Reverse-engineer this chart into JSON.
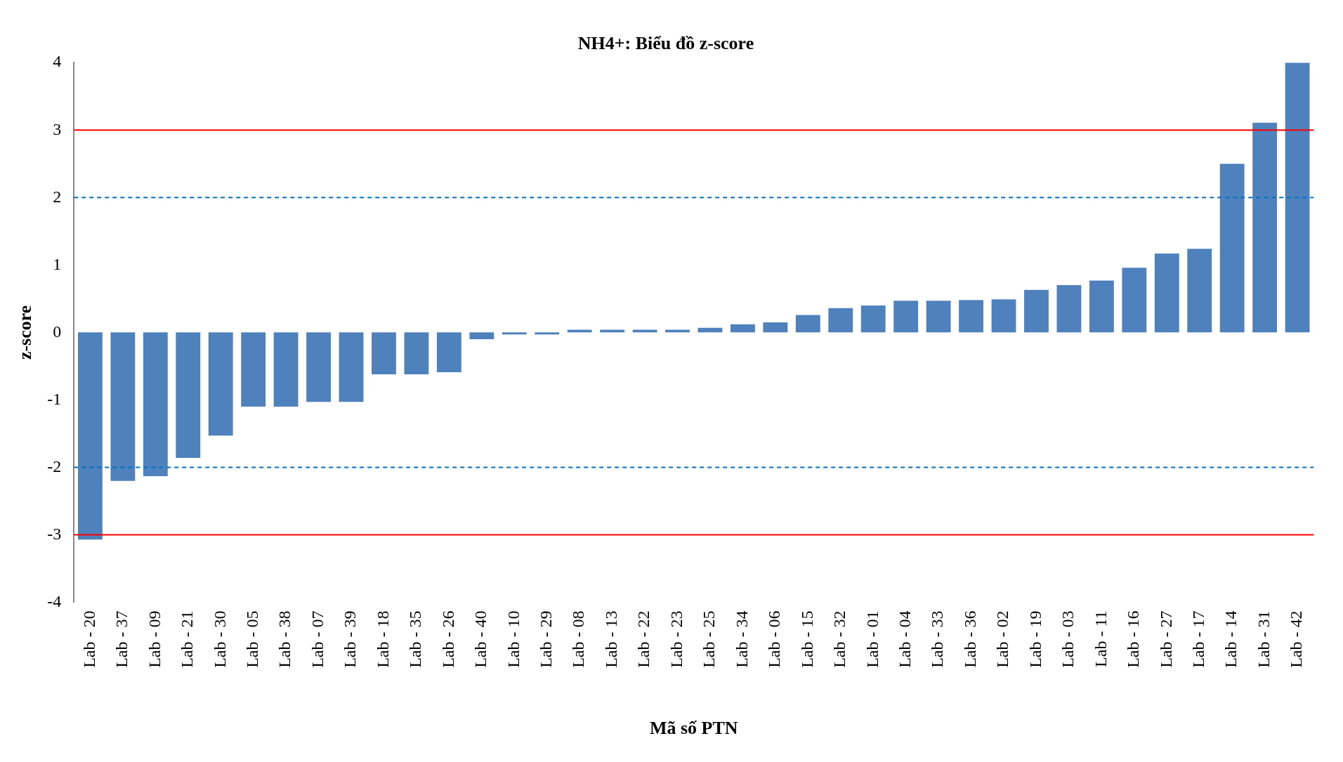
{
  "chart_data": {
    "type": "bar",
    "title": "NH4+: Biểu đồ z-score",
    "xlabel": "Mã số PTN",
    "ylabel": "z-score",
    "categories": [
      "Lab - 20",
      "Lab - 37",
      "Lab - 09",
      "Lab - 21",
      "Lab - 30",
      "Lab - 05",
      "Lab - 38",
      "Lab - 07",
      "Lab - 39",
      "Lab - 18",
      "Lab - 35",
      "Lab - 26",
      "Lab - 40",
      "Lab - 10",
      "Lab - 29",
      "Lab - 08",
      "Lab - 13",
      "Lab - 22",
      "Lab - 23",
      "Lab - 25",
      "Lab - 34",
      "Lab - 06",
      "Lab - 15",
      "Lab - 32",
      "Lab - 01",
      "Lab - 04",
      "Lab - 33",
      "Lab - 36",
      "Lab - 02",
      "Lab - 19",
      "Lab - 03",
      "Lab - 11",
      "Lab - 16",
      "Lab - 27",
      "Lab - 17",
      "Lab - 14",
      "Lab - 31",
      "Lab - 42"
    ],
    "values": [
      -3.07,
      -2.2,
      -2.13,
      -1.86,
      -1.53,
      -1.1,
      -1.1,
      -1.03,
      -1.03,
      -0.62,
      -0.62,
      -0.59,
      -0.1,
      -0.03,
      -0.03,
      0.04,
      0.04,
      0.04,
      0.04,
      0.07,
      0.12,
      0.15,
      0.26,
      0.36,
      0.4,
      0.47,
      0.47,
      0.48,
      0.49,
      0.63,
      0.7,
      0.77,
      0.96,
      1.17,
      1.24,
      2.5,
      3.11,
      4.0
    ],
    "color": "#4f81bd",
    "ylim": [
      -4,
      4
    ],
    "yticks": [
      -4,
      -3,
      -2,
      -1,
      0,
      1,
      2,
      3,
      4
    ],
    "grid": false,
    "legend": false,
    "ref_lines": [
      {
        "axis": "y",
        "value": 3,
        "color": "#ff0000",
        "line_style": "solid"
      },
      {
        "axis": "y",
        "value": 2,
        "color": "#0070c0",
        "line_style": "dashed"
      },
      {
        "axis": "y",
        "value": -2,
        "color": "#0070c0",
        "line_style": "dashed"
      },
      {
        "axis": "y",
        "value": -3,
        "color": "#ff0000",
        "line_style": "solid"
      }
    ]
  }
}
